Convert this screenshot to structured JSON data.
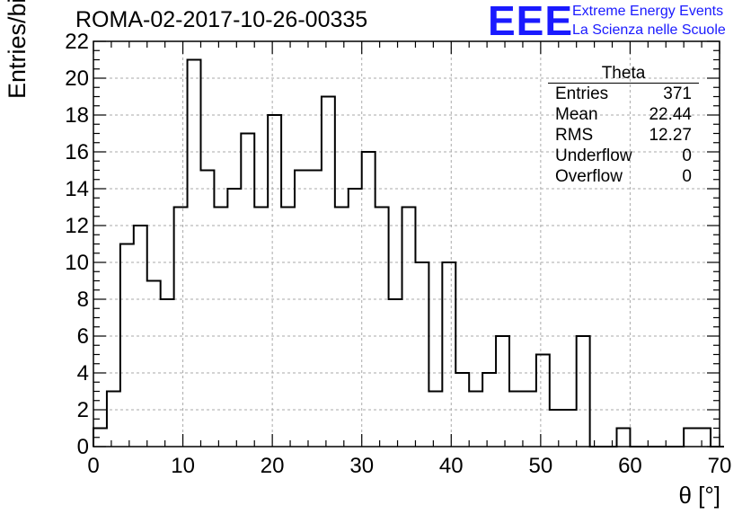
{
  "title": "ROMA-02-2017-10-26-00335",
  "brand": {
    "logo": "EEE",
    "line1": "Extreme Energy Events",
    "line2": "La Scienza nelle Scuole",
    "color": "#1a1aff"
  },
  "stats": {
    "title": "Theta",
    "rows": [
      {
        "label": "Entries",
        "value": "371"
      },
      {
        "label": "Mean",
        "value": "22.44"
      },
      {
        "label": "RMS",
        "value": "12.27"
      },
      {
        "label": "Underflow",
        "value": "0"
      },
      {
        "label": "Overflow",
        "value": "0"
      }
    ]
  },
  "chart_data": {
    "type": "bar",
    "title": "ROMA-02-2017-10-26-00335",
    "xlabel": "θ [°]",
    "ylabel": "Entries/bin",
    "xlim": [
      0,
      70
    ],
    "ylim": [
      0,
      22
    ],
    "bin_width": 1.5,
    "x_ticks": [
      0,
      10,
      20,
      30,
      40,
      50,
      60,
      70
    ],
    "y_ticks": [
      0,
      2,
      4,
      6,
      8,
      10,
      12,
      14,
      16,
      18,
      20,
      22
    ],
    "grid": true,
    "values": [
      1,
      3,
      11,
      12,
      9,
      8,
      13,
      21,
      15,
      13,
      14,
      17,
      13,
      18,
      13,
      15,
      15,
      19,
      13,
      14,
      16,
      13,
      8,
      13,
      10,
      3,
      10,
      4,
      3,
      4,
      6,
      3,
      3,
      5,
      2,
      2,
      6,
      0,
      0,
      1,
      0,
      0,
      0,
      0,
      1,
      1,
      0
    ]
  }
}
